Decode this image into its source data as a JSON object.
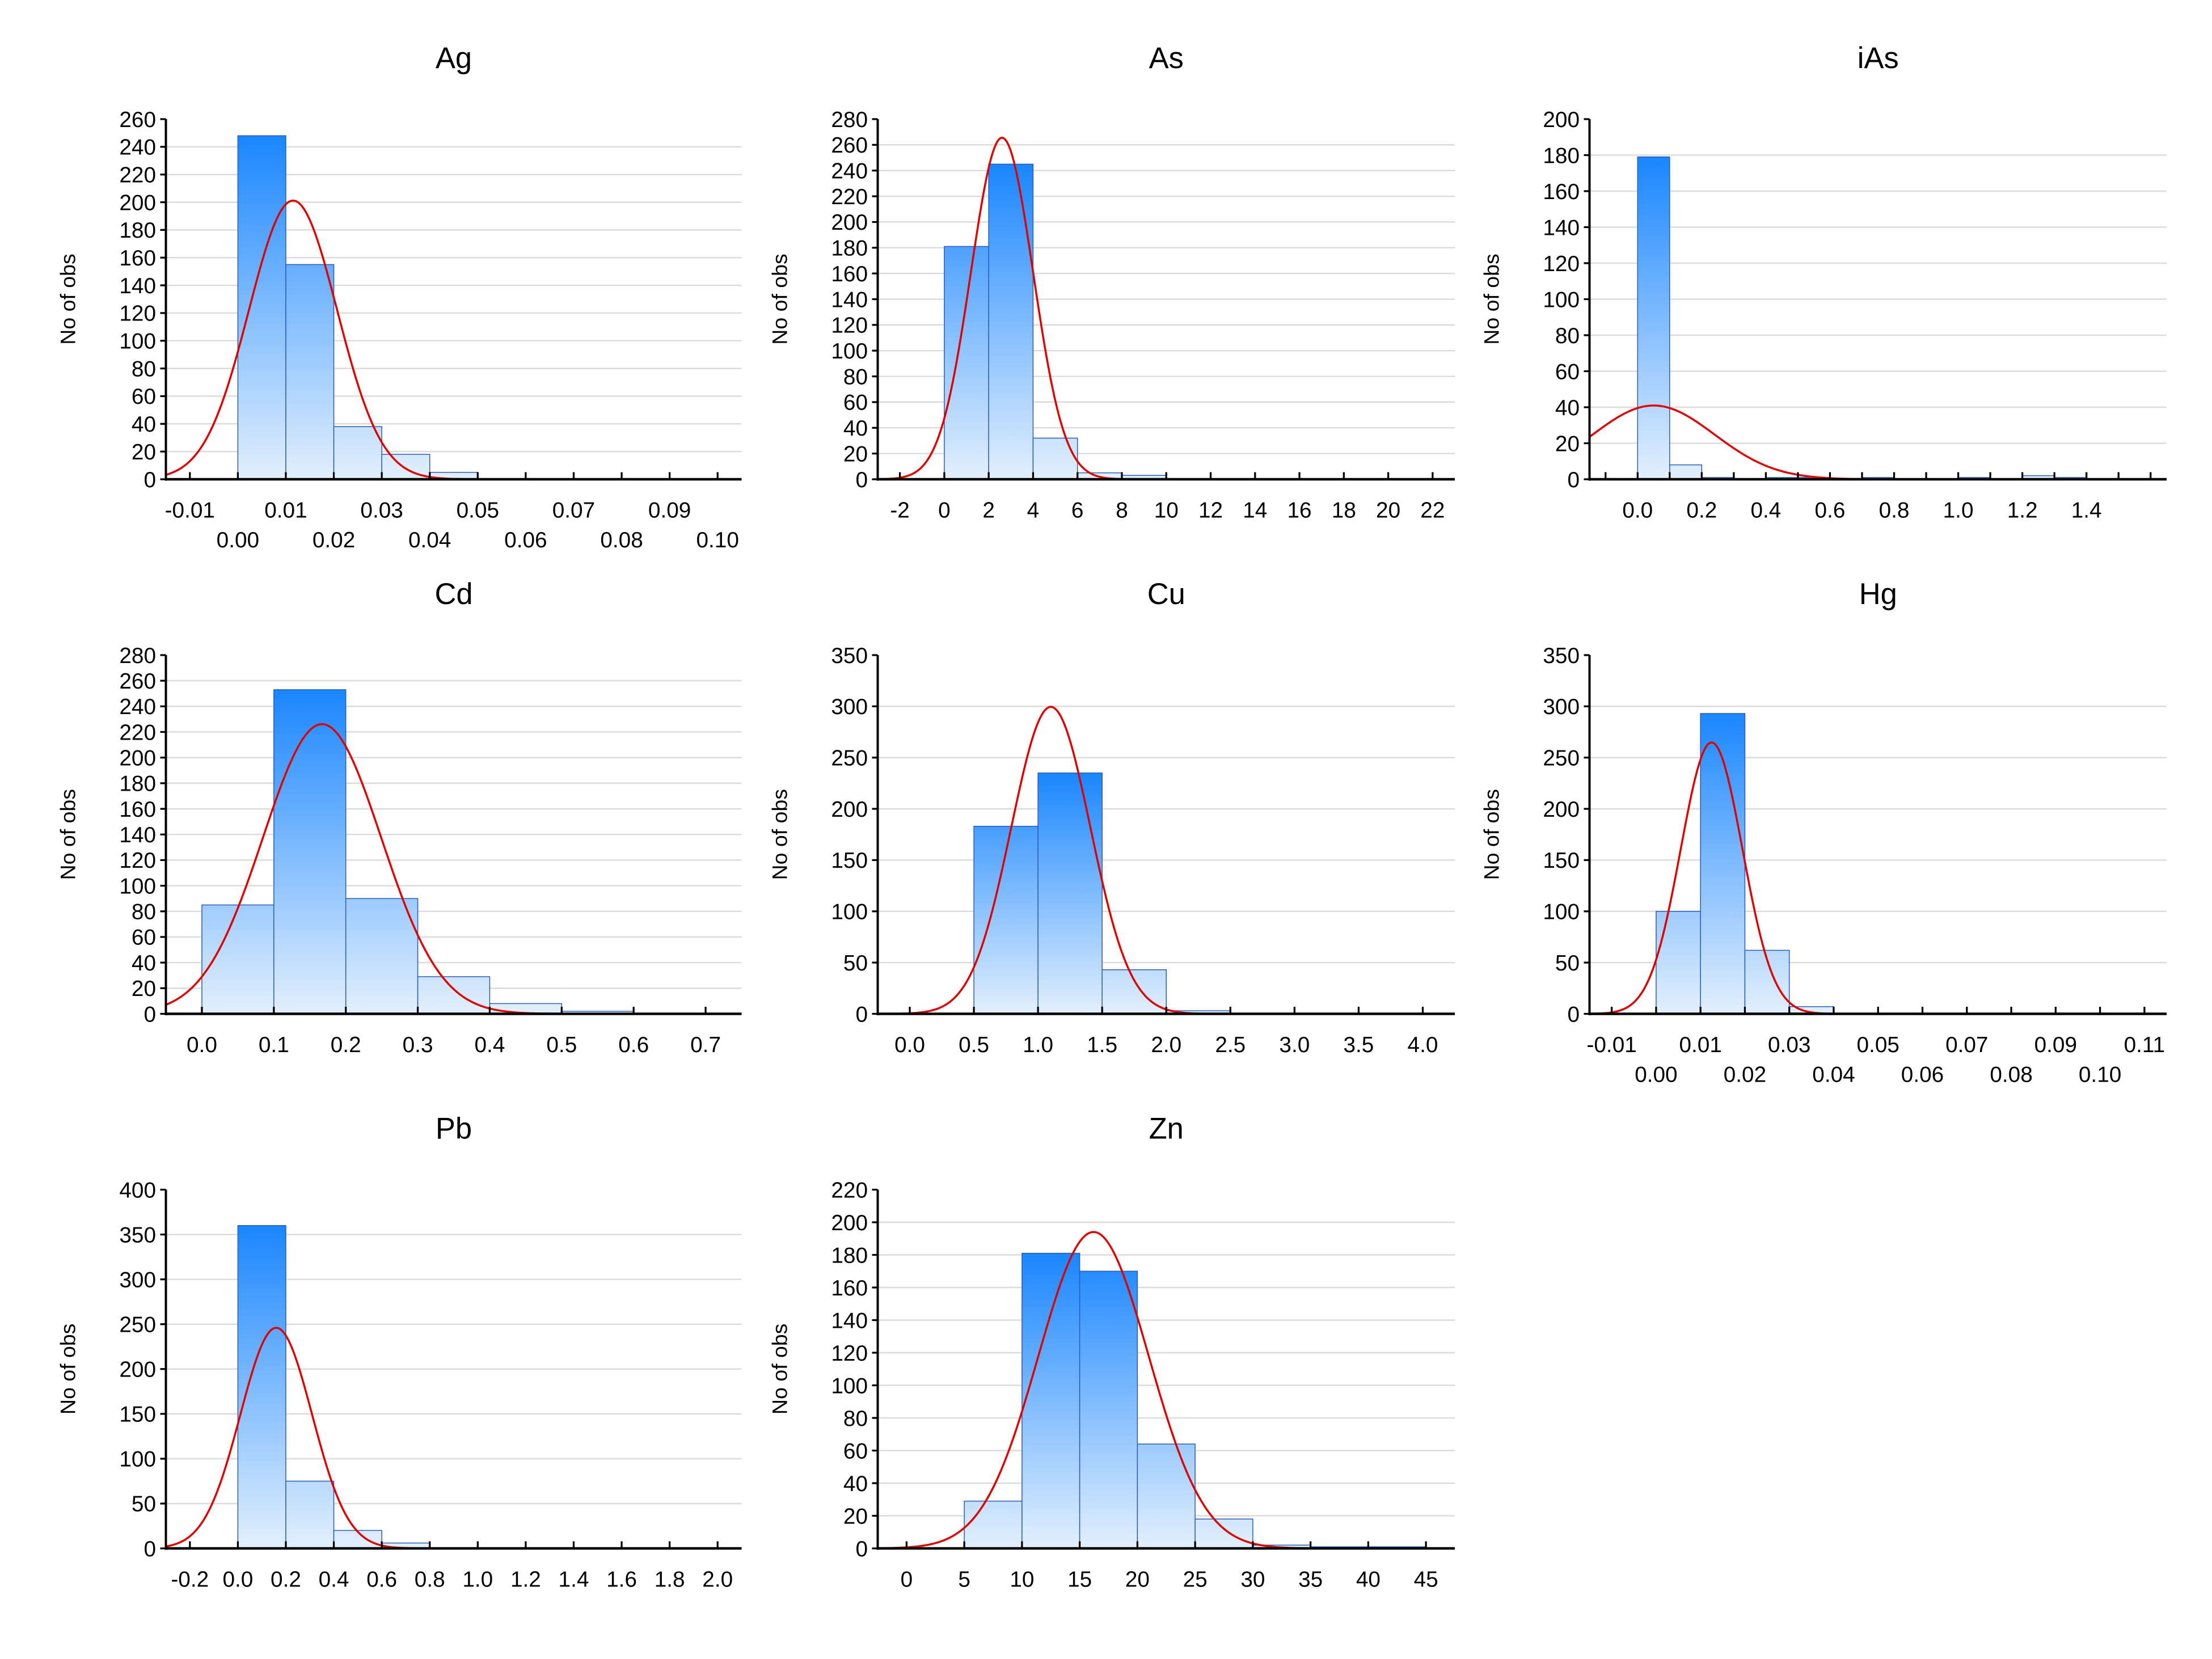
{
  "colors": {
    "bar_top": "#1a86ff",
    "bar_bottom": "#e3f0fd",
    "bar_edge": "#2a5cb8",
    "fit_line": "#e00000",
    "grid": "#dcdcdc"
  },
  "chart_data": [
    {
      "type": "bar",
      "title": "Ag",
      "xlabel": "",
      "ylabel": "No of obs",
      "xlim": [
        -0.015,
        0.105
      ],
      "ylim": [
        0,
        260
      ],
      "y_step": 20,
      "x_ticks": [
        "-0.01",
        "0.00",
        "0.01",
        "0.02",
        "0.03",
        "0.04",
        "0.05",
        "0.06",
        "0.07",
        "0.08",
        "0.09",
        "0.10"
      ],
      "x_tick_values": [
        -0.01,
        0,
        0.01,
        0.02,
        0.03,
        0.04,
        0.05,
        0.06,
        0.07,
        0.08,
        0.09,
        0.1
      ],
      "x_label_rows": 2,
      "bin_start": 0.0,
      "bin_width": 0.01,
      "counts": [
        248,
        155,
        38,
        18,
        5
      ],
      "normal_fit": {
        "mean": 0.0115,
        "sd": 0.0092
      },
      "grid": true
    },
    {
      "type": "bar",
      "title": "As",
      "xlabel": "",
      "ylabel": "No of obs",
      "xlim": [
        -3,
        23
      ],
      "ylim": [
        0,
        280
      ],
      "y_step": 20,
      "x_ticks": [
        "-2",
        "0",
        "2",
        "4",
        "6",
        "8",
        "10",
        "12",
        "14",
        "16",
        "18",
        "20",
        "22"
      ],
      "x_tick_values": [
        -2,
        0,
        2,
        4,
        6,
        8,
        10,
        12,
        14,
        16,
        18,
        20,
        22
      ],
      "x_label_rows": 1,
      "bin_start": 0,
      "bin_width": 2,
      "counts": [
        181,
        245,
        32,
        5,
        3
      ],
      "normal_fit": {
        "mean": 2.6,
        "sd": 1.4
      },
      "grid": true
    },
    {
      "type": "bar",
      "title": "iAs",
      "xlabel": "",
      "ylabel": "No of obs",
      "xlim": [
        -0.15,
        1.65
      ],
      "ylim": [
        0,
        200
      ],
      "y_step": 20,
      "x_ticks": [
        "",
        "0.0",
        "",
        "0.2",
        "",
        "0.4",
        "",
        "0.6",
        "",
        "0.8",
        "",
        "1.0",
        "",
        "1.2",
        "",
        "1.4",
        "",
        ""
      ],
      "x_tick_values": [
        -0.1,
        0,
        0.1,
        0.2,
        0.3,
        0.4,
        0.5,
        0.6,
        0.7,
        0.8,
        0.9,
        1.0,
        1.1,
        1.2,
        1.3,
        1.4,
        1.5,
        1.6
      ],
      "x_label_rows": 1,
      "bin_start": 0.0,
      "bin_width": 0.1,
      "counts": [
        179,
        8,
        1,
        0,
        1,
        1,
        0,
        1,
        0,
        0,
        1,
        0,
        2,
        1
      ],
      "normal_fit": {
        "mean": 0.05,
        "sd": 0.19
      },
      "grid": true
    },
    {
      "type": "bar",
      "title": "Cd",
      "xlabel": "",
      "ylabel": "No of obs",
      "xlim": [
        -0.05,
        0.75
      ],
      "ylim": [
        0,
        280
      ],
      "y_step": 20,
      "x_ticks": [
        "0.0",
        "0.1",
        "0.2",
        "0.3",
        "0.4",
        "0.5",
        "0.6",
        "0.7"
      ],
      "x_tick_values": [
        0,
        0.1,
        0.2,
        0.3,
        0.4,
        0.5,
        0.6,
        0.7
      ],
      "x_label_rows": 1,
      "bin_start": 0.0,
      "bin_width": 0.1,
      "counts": [
        85,
        253,
        90,
        29,
        8,
        2
      ],
      "normal_fit": {
        "mean": 0.167,
        "sd": 0.0824
      },
      "grid": true
    },
    {
      "type": "bar",
      "title": "Cu",
      "xlabel": "",
      "ylabel": "No of obs",
      "xlim": [
        -0.25,
        4.25
      ],
      "ylim": [
        0,
        350
      ],
      "y_step": 50,
      "x_ticks": [
        "0.0",
        "0.5",
        "1.0",
        "1.5",
        "2.0",
        "2.5",
        "3.0",
        "3.5",
        "4.0"
      ],
      "x_tick_values": [
        0,
        0.5,
        1,
        1.5,
        2,
        2.5,
        3,
        3.5,
        4
      ],
      "x_label_rows": 1,
      "bin_start": 0.5,
      "bin_width": 0.5,
      "counts": [
        183,
        235,
        43,
        3
      ],
      "normal_fit": {
        "mean": 1.1,
        "sd": 0.309
      },
      "grid": true
    },
    {
      "type": "bar",
      "title": "Hg",
      "xlabel": "",
      "ylabel": "No of obs",
      "xlim": [
        -0.015,
        0.115
      ],
      "ylim": [
        0,
        350
      ],
      "y_step": 50,
      "x_ticks": [
        "-0.01",
        "0.00",
        "0.01",
        "0.02",
        "0.03",
        "0.04",
        "0.05",
        "0.06",
        "0.07",
        "0.08",
        "0.09",
        "0.10",
        "0.11"
      ],
      "x_tick_values": [
        -0.01,
        0,
        0.01,
        0.02,
        0.03,
        0.04,
        0.05,
        0.06,
        0.07,
        0.08,
        0.09,
        0.1,
        0.11
      ],
      "x_label_rows": 2,
      "bin_start": 0.0,
      "bin_width": 0.01,
      "counts": [
        100,
        293,
        62,
        7
      ],
      "normal_fit": {
        "mean": 0.0125,
        "sd": 0.00696
      },
      "grid": true
    },
    {
      "type": "bar",
      "title": "Pb",
      "xlabel": "",
      "ylabel": "No of obs",
      "xlim": [
        -0.3,
        2.1
      ],
      "ylim": [
        0,
        400
      ],
      "y_step": 50,
      "x_ticks": [
        "-0.2",
        "0.0",
        "0.2",
        "0.4",
        "0.6",
        "0.8",
        "1.0",
        "1.2",
        "1.4",
        "1.6",
        "1.8",
        "2.0"
      ],
      "x_tick_values": [
        -0.2,
        0,
        0.2,
        0.4,
        0.6,
        0.8,
        1.0,
        1.2,
        1.4,
        1.6,
        1.8,
        2.0
      ],
      "x_label_rows": 1,
      "bin_start": 0.0,
      "bin_width": 0.2,
      "counts": [
        360,
        75,
        20,
        6
      ],
      "normal_fit": {
        "mean": 0.16,
        "sd": 0.1495
      },
      "grid": true
    },
    {
      "type": "bar",
      "title": "Zn",
      "xlabel": "",
      "ylabel": "No of obs",
      "xlim": [
        -2.5,
        47.5
      ],
      "ylim": [
        0,
        220
      ],
      "y_step": 20,
      "x_ticks": [
        "0",
        "5",
        "10",
        "15",
        "20",
        "25",
        "30",
        "35",
        "40",
        "45"
      ],
      "x_tick_values": [
        0,
        5,
        10,
        15,
        20,
        25,
        30,
        35,
        40,
        45
      ],
      "x_label_rows": 1,
      "bin_start": 5,
      "bin_width": 5,
      "counts": [
        29,
        181,
        170,
        64,
        18,
        2,
        1,
        1
      ],
      "normal_fit": {
        "mean": 16.2,
        "sd": 4.79
      },
      "grid": true
    }
  ]
}
